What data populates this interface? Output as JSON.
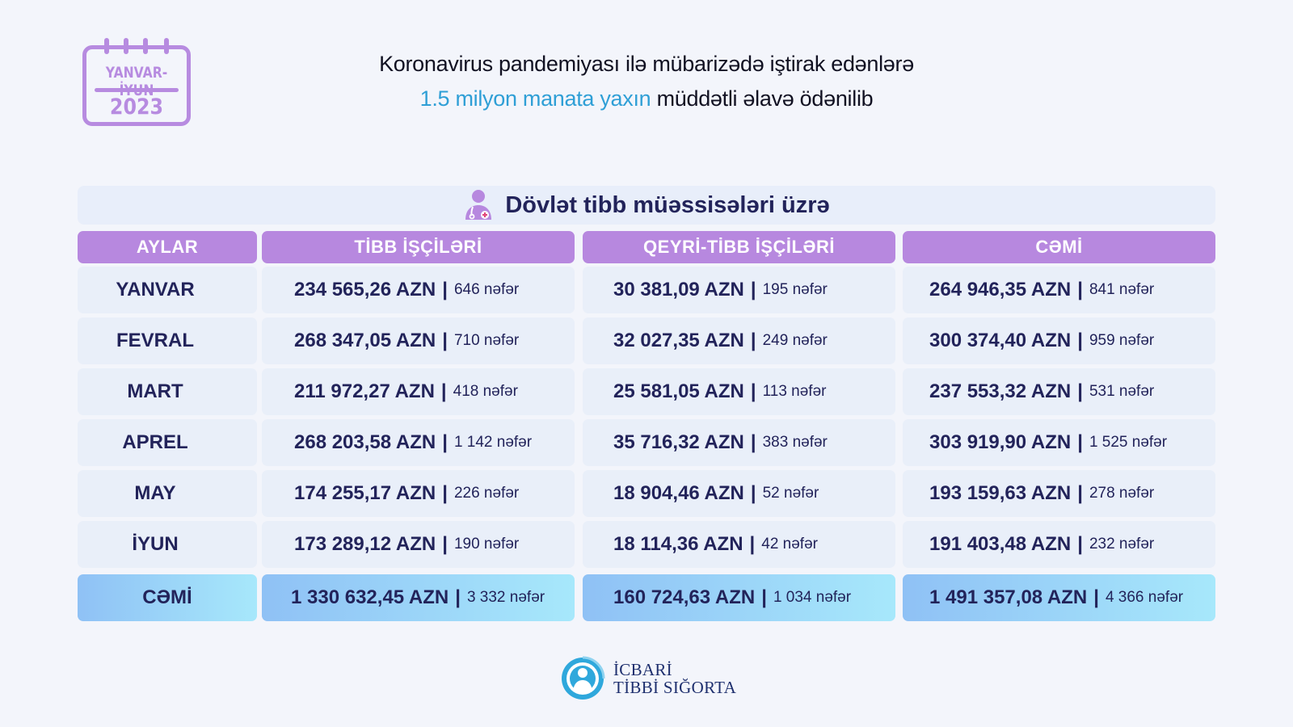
{
  "calendar": {
    "period": "YANVAR-İYUN",
    "year": "2023"
  },
  "headline": {
    "line1": "Koronavirus pandemiyası ilə mübarizədə iştirak edənlərə",
    "accent": "1.5 milyon manata yaxın",
    "line2_rest": "müddətli əlavə ödənilib"
  },
  "section": {
    "title": "Dövlət tibb müəssisələri üzrə",
    "icon": "doctor-icon"
  },
  "table": {
    "headers": [
      "AYLAR",
      "TİBB İŞÇİLƏRİ",
      "QEYRİ-TİBB İŞÇİLƏRİ",
      "CƏMİ"
    ],
    "rows": [
      {
        "month": "YANVAR",
        "medical": {
          "amount": "234 565,26 AZN",
          "people": "646 nəfər"
        },
        "nonmedical": {
          "amount": "30 381,09 AZN",
          "people": "195 nəfər"
        },
        "total": {
          "amount": "264 946,35 AZN",
          "people": "841 nəfər"
        }
      },
      {
        "month": "FEVRAL",
        "medical": {
          "amount": "268 347,05 AZN",
          "people": "710 nəfər"
        },
        "nonmedical": {
          "amount": "32 027,35 AZN",
          "people": "249 nəfər"
        },
        "total": {
          "amount": "300 374,40 AZN",
          "people": "959 nəfər"
        }
      },
      {
        "month": "MART",
        "medical": {
          "amount": "211 972,27 AZN",
          "people": "418 nəfər"
        },
        "nonmedical": {
          "amount": "25 581,05 AZN",
          "people": "113 nəfər"
        },
        "total": {
          "amount": "237 553,32 AZN",
          "people": "531 nəfər"
        }
      },
      {
        "month": "APREL",
        "medical": {
          "amount": "268 203,58 AZN",
          "people": "1 142 nəfər"
        },
        "nonmedical": {
          "amount": "35 716,32 AZN",
          "people": "383 nəfər"
        },
        "total": {
          "amount": "303 919,90 AZN",
          "people": "1 525 nəfər"
        }
      },
      {
        "month": "MAY",
        "medical": {
          "amount": "174 255,17 AZN",
          "people": "226 nəfər"
        },
        "nonmedical": {
          "amount": "18 904,46 AZN",
          "people": "52 nəfər"
        },
        "total": {
          "amount": "193 159,63 AZN",
          "people": "278 nəfər"
        }
      },
      {
        "month": "İYUN",
        "medical": {
          "amount": "173 289,12 AZN",
          "people": "190 nəfər"
        },
        "nonmedical": {
          "amount": "18 114,36 AZN",
          "people": "42 nəfər"
        },
        "total": {
          "amount": "191 403,48 AZN",
          "people": "232 nəfər"
        }
      }
    ],
    "totals": {
      "label": "CƏMİ",
      "medical": {
        "amount": "1 330 632,45 AZN",
        "people": "3 332 nəfər"
      },
      "nonmedical": {
        "amount": "160 724,63 AZN",
        "people": "1 034 nəfər"
      },
      "total": {
        "amount": "1 491 357,08 AZN",
        "people": "4 366 nəfər"
      }
    }
  },
  "logo": {
    "line1": "İCBARİ",
    "line2": "TİBBİ SIĞORTA",
    "icon": "insurance-logo-icon"
  },
  "colors": {
    "background": "#f3f5fb",
    "accent_purple": "#b788df",
    "accent_blue": "#2f9fd6",
    "text_dark": "#22235a",
    "cell_bg": "#e9eff9"
  }
}
